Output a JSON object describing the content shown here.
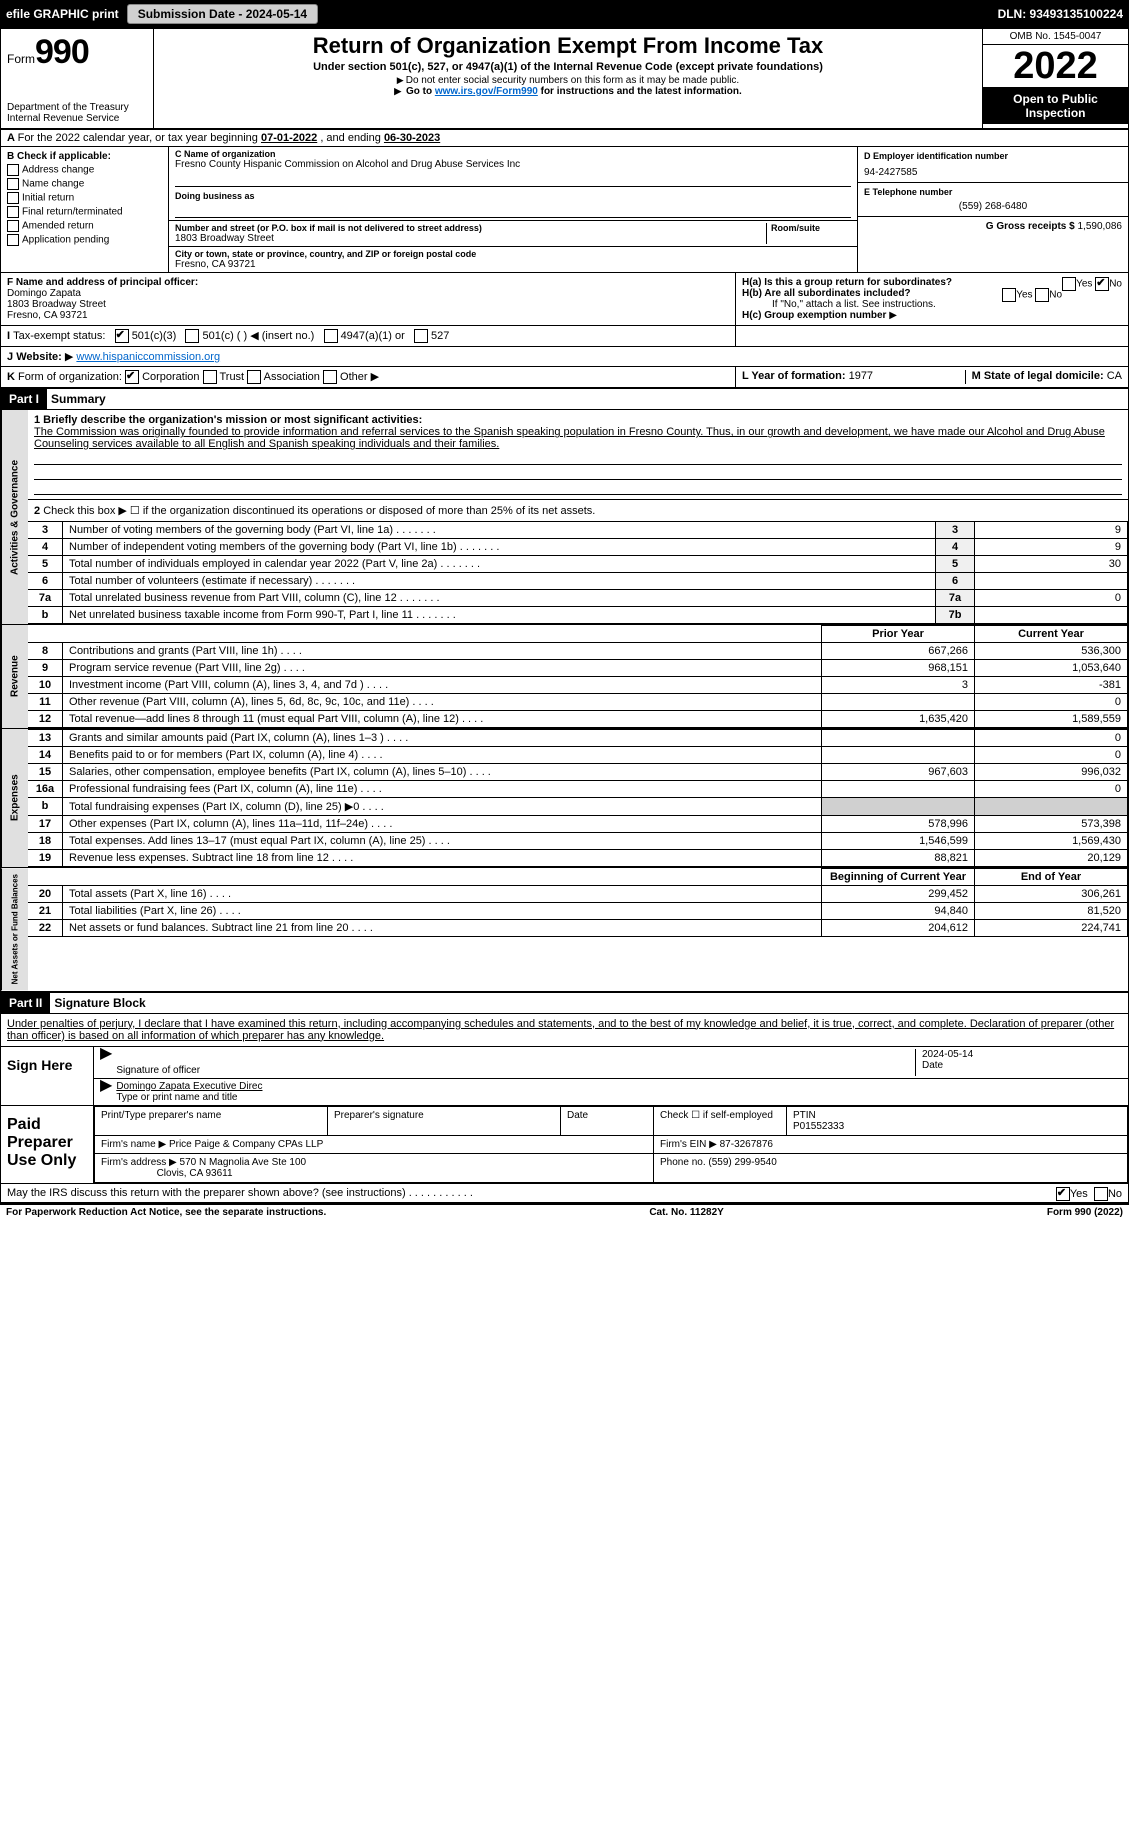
{
  "topbar": {
    "efile_label": "efile GRAPHIC print",
    "submission_label": "Submission Date - 2024-05-14",
    "dln_label": "DLN: 93493135100224"
  },
  "header": {
    "form_label": "Form",
    "form_number": "990",
    "dept_lines": [
      "Department of the Treasury",
      "Internal Revenue Service"
    ],
    "title": "Return of Organization Exempt From Income Tax",
    "subtitle": "Under section 501(c), 527, or 4947(a)(1) of the Internal Revenue Code (except private foundations)",
    "note1": "Do not enter social security numbers on this form as it may be made public.",
    "note2_pre": "Go to ",
    "note2_link": "www.irs.gov/Form990",
    "note2_post": " for instructions and the latest information.",
    "omb": "OMB No. 1545-0047",
    "year": "2022",
    "open_public": "Open to Public Inspection"
  },
  "rowA": {
    "text_pre": "For the 2022 calendar year, or tax year beginning ",
    "begin": "07-01-2022",
    "mid": " , and ending ",
    "end": "06-30-2023"
  },
  "B": {
    "heading": "B Check if applicable:",
    "opts": [
      "Address change",
      "Name change",
      "Initial return",
      "Final return/terminated",
      "Amended return",
      "Application pending"
    ]
  },
  "C": {
    "name_label": "C Name of organization",
    "name": "Fresno County Hispanic Commission on Alcohol and Drug Abuse Services Inc",
    "dba_label": "Doing business as",
    "addr_label": "Number and street (or P.O. box if mail is not delivered to street address)",
    "room_label": "Room/suite",
    "street": "1803 Broadway Street",
    "city_label": "City or town, state or province, country, and ZIP or foreign postal code",
    "city": "Fresno, CA  93721"
  },
  "D": {
    "label": "D Employer identification number",
    "value": "94-2427585"
  },
  "E": {
    "label": "E Telephone number",
    "value": "(559) 268-6480"
  },
  "G": {
    "label": "G Gross receipts $",
    "value": "1,590,086"
  },
  "F": {
    "label": "F Name and address of principal officer:",
    "name": "Domingo Zapata",
    "addr1": "1803 Broadway Street",
    "addr2": "Fresno, CA  93721"
  },
  "H": {
    "a_label": "H(a)  Is this a group return for subordinates?",
    "a_yes": "Yes",
    "a_no": "No",
    "b_label": "H(b)  Are all subordinates included?",
    "b_yes": "Yes",
    "b_no": "No",
    "b_note": "If \"No,\" attach a list. See instructions.",
    "c_label": "H(c)  Group exemption number"
  },
  "I": {
    "label": "Tax-exempt status:",
    "opt1": "501(c)(3)",
    "opt2": "501(c) (  )",
    "opt2b": "(insert no.)",
    "opt3": "4947(a)(1) or",
    "opt4": "527"
  },
  "J": {
    "label": "Website:",
    "value": "www.hispaniccommission.org"
  },
  "K": {
    "label": "Form of organization:",
    "opts": [
      "Corporation",
      "Trust",
      "Association",
      "Other"
    ]
  },
  "L": {
    "label": "L Year of formation:",
    "value": "1977"
  },
  "M": {
    "label": "M State of legal domicile:",
    "value": "CA"
  },
  "part1": {
    "hdr": "Part I",
    "title": "Summary",
    "line1_label": "1  Briefly describe the organization's mission or most significant activities:",
    "mission": "The Commission was originally founded to provide information and referral services to the Spanish speaking population in Fresno County. Thus, in our growth and development, we have made our Alcohol and Drug Abuse Counseling services available to all English and Spanish speaking individuals and their families.",
    "line2": "Check this box ▶ ☐ if the organization discontinued its operations or disposed of more than 25% of its net assets.",
    "vt_gov": "Activities & Governance",
    "gov_rows": [
      {
        "n": "3",
        "t": "Number of voting members of the governing body (Part VI, line 1a)",
        "b": "3",
        "v": "9"
      },
      {
        "n": "4",
        "t": "Number of independent voting members of the governing body (Part VI, line 1b)",
        "b": "4",
        "v": "9"
      },
      {
        "n": "5",
        "t": "Total number of individuals employed in calendar year 2022 (Part V, line 2a)",
        "b": "5",
        "v": "30"
      },
      {
        "n": "6",
        "t": "Total number of volunteers (estimate if necessary)",
        "b": "6",
        "v": ""
      },
      {
        "n": "7a",
        "t": "Total unrelated business revenue from Part VIII, column (C), line 12",
        "b": "7a",
        "v": "0"
      },
      {
        "n": "b",
        "t": "Net unrelated business taxable income from Form 990-T, Part I, line 11",
        "b": "7b",
        "v": ""
      }
    ],
    "vt_rev": "Revenue",
    "py": "Prior Year",
    "cy": "Current Year",
    "rev_rows": [
      {
        "n": "8",
        "t": "Contributions and grants (Part VIII, line 1h)",
        "p": "667,266",
        "c": "536,300"
      },
      {
        "n": "9",
        "t": "Program service revenue (Part VIII, line 2g)",
        "p": "968,151",
        "c": "1,053,640"
      },
      {
        "n": "10",
        "t": "Investment income (Part VIII, column (A), lines 3, 4, and 7d )",
        "p": "3",
        "c": "-381"
      },
      {
        "n": "11",
        "t": "Other revenue (Part VIII, column (A), lines 5, 6d, 8c, 9c, 10c, and 11e)",
        "p": "",
        "c": "0"
      },
      {
        "n": "12",
        "t": "Total revenue—add lines 8 through 11 (must equal Part VIII, column (A), line 12)",
        "p": "1,635,420",
        "c": "1,589,559"
      }
    ],
    "vt_exp": "Expenses",
    "exp_rows": [
      {
        "n": "13",
        "t": "Grants and similar amounts paid (Part IX, column (A), lines 1–3 )",
        "p": "",
        "c": "0"
      },
      {
        "n": "14",
        "t": "Benefits paid to or for members (Part IX, column (A), line 4)",
        "p": "",
        "c": "0"
      },
      {
        "n": "15",
        "t": "Salaries, other compensation, employee benefits (Part IX, column (A), lines 5–10)",
        "p": "967,603",
        "c": "996,032"
      },
      {
        "n": "16a",
        "t": "Professional fundraising fees (Part IX, column (A), line 11e)",
        "p": "",
        "c": "0"
      },
      {
        "n": "b",
        "t": "Total fundraising expenses (Part IX, column (D), line 25) ▶0",
        "p": "SHADE",
        "c": "SHADE"
      },
      {
        "n": "17",
        "t": "Other expenses (Part IX, column (A), lines 11a–11d, 11f–24e)",
        "p": "578,996",
        "c": "573,398"
      },
      {
        "n": "18",
        "t": "Total expenses. Add lines 13–17 (must equal Part IX, column (A), line 25)",
        "p": "1,546,599",
        "c": "1,569,430"
      },
      {
        "n": "19",
        "t": "Revenue less expenses. Subtract line 18 from line 12",
        "p": "88,821",
        "c": "20,129"
      }
    ],
    "vt_net": "Net Assets or Fund Balances",
    "by": "Beginning of Current Year",
    "ey": "End of Year",
    "net_rows": [
      {
        "n": "20",
        "t": "Total assets (Part X, line 16)",
        "p": "299,452",
        "c": "306,261"
      },
      {
        "n": "21",
        "t": "Total liabilities (Part X, line 26)",
        "p": "94,840",
        "c": "81,520"
      },
      {
        "n": "22",
        "t": "Net assets or fund balances. Subtract line 21 from line 20",
        "p": "204,612",
        "c": "224,741"
      }
    ]
  },
  "part2": {
    "hdr": "Part II",
    "title": "Signature Block",
    "penalties": "Under penalties of perjury, I declare that I have examined this return, including accompanying schedules and statements, and to the best of my knowledge and belief, it is true, correct, and complete. Declaration of preparer (other than officer) is based on all information of which preparer has any knowledge.",
    "sign_here": "Sign Here",
    "sig_officer": "Signature of officer",
    "sig_date": "2024-05-14",
    "date_label": "Date",
    "officer_name": "Domingo Zapata  Executive Direc",
    "type_name": "Type or print name and title",
    "paid": "Paid Preparer Use Only",
    "prep_name_label": "Print/Type preparer's name",
    "prep_sig_label": "Preparer's signature",
    "check_if": "Check ☐ if self-employed",
    "ptin_label": "PTIN",
    "ptin": "P01552333",
    "firm_name_label": "Firm's name",
    "firm_name": "Price Paige & Company CPAs LLP",
    "firm_ein_label": "Firm's EIN",
    "firm_ein": "87-3267876",
    "firm_addr_label": "Firm's address",
    "firm_addr1": "570 N Magnolia Ave Ste 100",
    "firm_addr2": "Clovis, CA  93611",
    "phone_label": "Phone no.",
    "phone": "(559) 299-9540",
    "discuss": "May the IRS discuss this return with the preparer shown above? (see instructions)",
    "yes": "Yes",
    "no": "No"
  },
  "footer": {
    "left": "For Paperwork Reduction Act Notice, see the separate instructions.",
    "mid": "Cat. No. 11282Y",
    "right": "Form 990 (2022)"
  },
  "colors": {
    "black": "#000000",
    "link": "#0066cc",
    "shade": "#d0d0d0"
  }
}
